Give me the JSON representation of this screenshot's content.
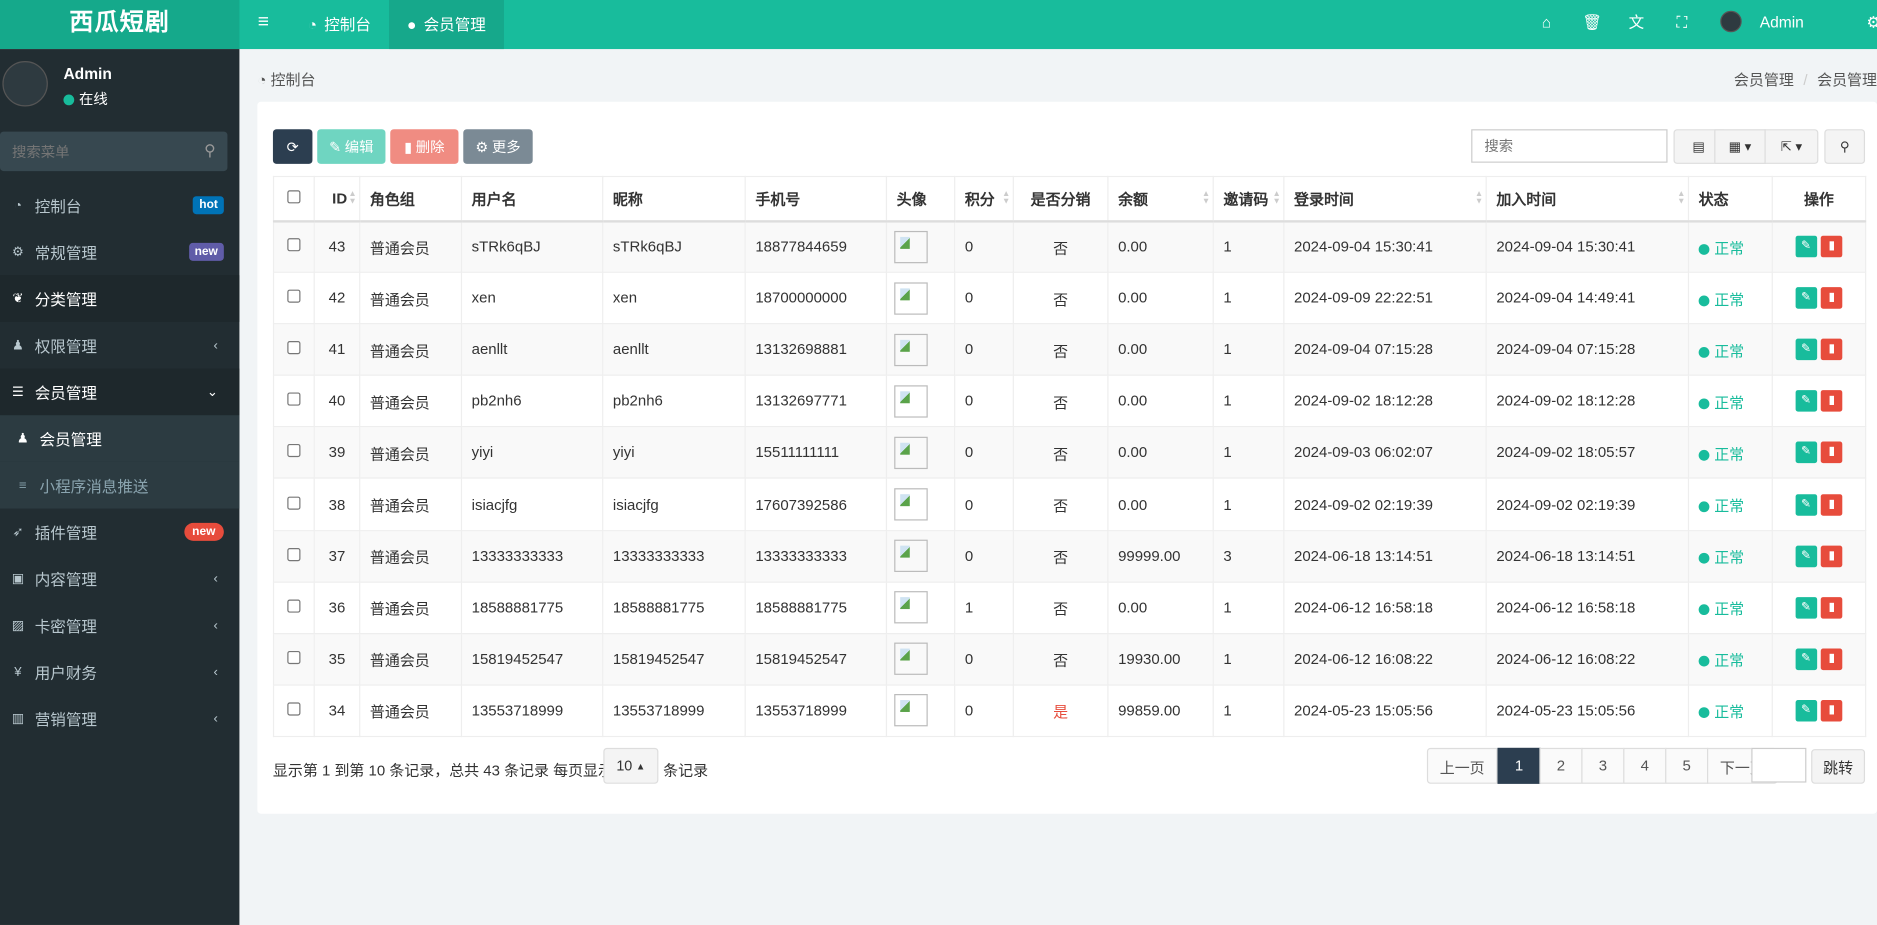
{
  "app": {
    "logo": "西瓜短剧"
  },
  "topnav": {
    "tabs": [
      {
        "label": "控制台",
        "icon": "dashboard-icon"
      },
      {
        "label": "会员管理",
        "icon": "user-icon",
        "active": true
      }
    ],
    "right": {
      "user": "Admin",
      "icons": [
        "home-icon",
        "trash-icon",
        "translate-icon",
        "fullscreen-icon",
        "gear-icon"
      ]
    }
  },
  "sidebar": {
    "user": {
      "name": "Admin",
      "status": "在线"
    },
    "search_placeholder": "搜索菜单",
    "items": [
      {
        "label": "控制台",
        "icon": "dashboard-icon",
        "badge": "hot",
        "badge_color": "#0073b7"
      },
      {
        "label": "常规管理",
        "icon": "cogs-icon",
        "badge": "new",
        "badge_color": "#605ca8"
      },
      {
        "label": "分类管理",
        "icon": "leaf-icon",
        "active": true
      },
      {
        "label": "权限管理",
        "icon": "group-icon"
      },
      {
        "label": "会员管理",
        "icon": "list-icon",
        "expanded": true
      },
      {
        "label": "会员管理",
        "icon": "user-icon",
        "sub": true,
        "active": true
      },
      {
        "label": "小程序消息推送",
        "icon": "bars-icon",
        "sub": true
      },
      {
        "label": "插件管理",
        "icon": "rocket-icon",
        "badge": "new",
        "badge_color": "#e74c3c"
      },
      {
        "label": "内容管理",
        "icon": "file-icon"
      },
      {
        "label": "卡密管理",
        "icon": "image-icon"
      },
      {
        "label": "用户财务",
        "icon": "yen-icon"
      },
      {
        "label": "营销管理",
        "icon": "bar-chart-icon"
      }
    ]
  },
  "breadcrumb": {
    "left": "控制台",
    "right": [
      "会员管理",
      "会员管理"
    ],
    "sep": "/"
  },
  "toolbar": {
    "edit": "编辑",
    "delete": "删除",
    "more": "更多",
    "search_placeholder": "搜索"
  },
  "table": {
    "columns": [
      "ID",
      "角色组",
      "用户名",
      "昵称",
      "手机号",
      "头像",
      "积分",
      "是否分销",
      "余额",
      "邀请码",
      "登录时间",
      "加入时间",
      "状态",
      "操作"
    ],
    "rows": [
      [
        "43",
        "普通会员",
        "sTRk6qBJ",
        "sTRk6qBJ",
        "18877844659",
        "",
        "0",
        "否",
        "0.00",
        "1",
        "2024-09-04 15:30:41",
        "2024-09-04 15:30:41",
        "正常"
      ],
      [
        "42",
        "普通会员",
        "xen",
        "xen",
        "18700000000",
        "",
        "0",
        "否",
        "0.00",
        "1",
        "2024-09-09 22:22:51",
        "2024-09-04 14:49:41",
        "正常"
      ],
      [
        "41",
        "普通会员",
        "aenllt",
        "aenllt",
        "13132698881",
        "",
        "0",
        "否",
        "0.00",
        "1",
        "2024-09-04 07:15:28",
        "2024-09-04 07:15:28",
        "正常"
      ],
      [
        "40",
        "普通会员",
        "pb2nh6",
        "pb2nh6",
        "13132697771",
        "",
        "0",
        "否",
        "0.00",
        "1",
        "2024-09-02 18:12:28",
        "2024-09-02 18:12:28",
        "正常"
      ],
      [
        "39",
        "普通会员",
        "yiyi",
        "yiyi",
        "15511111111",
        "",
        "0",
        "否",
        "0.00",
        "1",
        "2024-09-03 06:02:07",
        "2024-09-02 18:05:57",
        "正常"
      ],
      [
        "38",
        "普通会员",
        "isiacjfg",
        "isiacjfg",
        "17607392586",
        "",
        "0",
        "否",
        "0.00",
        "1",
        "2024-09-02 02:19:39",
        "2024-09-02 02:19:39",
        "正常"
      ],
      [
        "37",
        "普通会员",
        "13333333333",
        "13333333333",
        "13333333333",
        "",
        "0",
        "否",
        "99999.00",
        "3",
        "2024-06-18 13:14:51",
        "2024-06-18 13:14:51",
        "正常"
      ],
      [
        "36",
        "普通会员",
        "18588881775",
        "18588881775",
        "18588881775",
        "",
        "1",
        "否",
        "0.00",
        "1",
        "2024-06-12 16:58:18",
        "2024-06-12 16:58:18",
        "正常"
      ],
      [
        "35",
        "普通会员",
        "15819452547",
        "15819452547",
        "15819452547",
        "",
        "0",
        "否",
        "19930.00",
        "1",
        "2024-06-12 16:08:22",
        "2024-06-12 16:08:22",
        "正常"
      ],
      [
        "34",
        "普通会员",
        "13553718999",
        "13553718999",
        "13553718999",
        "",
        "0",
        "是",
        "99859.00",
        "1",
        "2024-05-23 15:05:56",
        "2024-05-23 15:05:56",
        "正常"
      ]
    ]
  },
  "footer": {
    "summary": "显示第 1 到第 10 条记录，总共 43 条记录 每页显示",
    "page_size": "10",
    "suffix": "条记录",
    "prev": "上一页",
    "pages": [
      "1",
      "2",
      "3",
      "4",
      "5"
    ],
    "current": "1",
    "next": "下一页",
    "jump": "跳转"
  }
}
